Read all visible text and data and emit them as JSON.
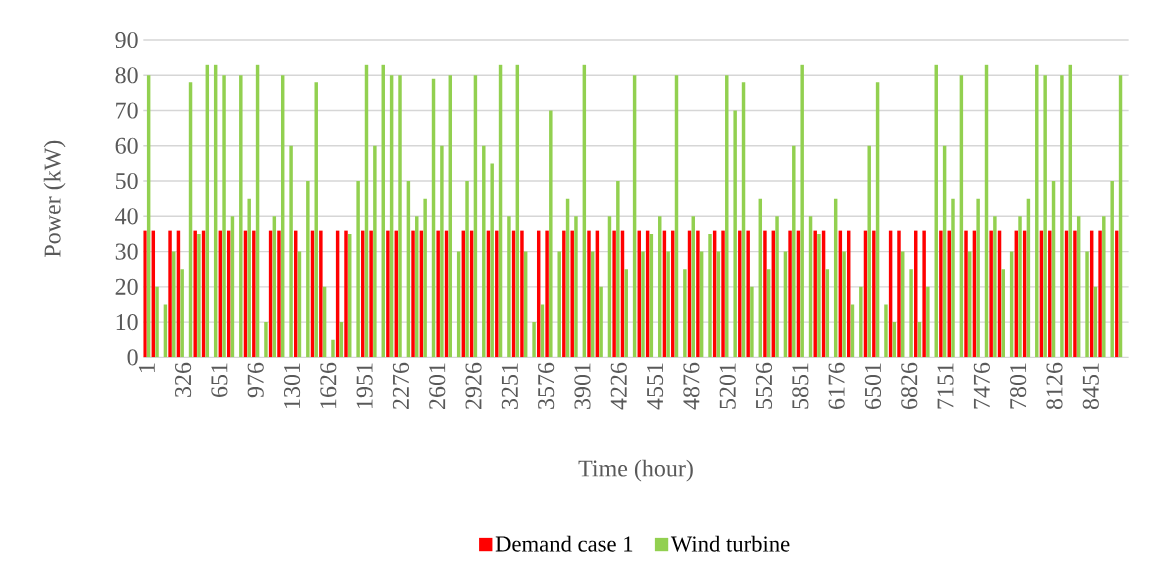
{
  "chart_data": {
    "type": "bar",
    "xlabel": "Time (hour)",
    "ylabel": "Power (kW)",
    "x": [
      1,
      76,
      151,
      226,
      301,
      376,
      451,
      526,
      601,
      676,
      751,
      826,
      901,
      976,
      1051,
      1126,
      1201,
      1276,
      1351,
      1426,
      1501,
      1576,
      1651,
      1726,
      1801,
      1876,
      1951,
      2026,
      2101,
      2176,
      2251,
      2326,
      2401,
      2476,
      2551,
      2626,
      2701,
      2776,
      2851,
      2926,
      3001,
      3076,
      3151,
      3226,
      3301,
      3376,
      3451,
      3526,
      3601,
      3676,
      3751,
      3826,
      3901,
      3976,
      4051,
      4126,
      4201,
      4276,
      4351,
      4426,
      4501,
      4576,
      4651,
      4726,
      4801,
      4876,
      4951,
      5026,
      5101,
      5176,
      5251,
      5326,
      5401,
      5476,
      5551,
      5626,
      5701,
      5776,
      5851,
      5926,
      6001,
      6076,
      6151,
      6226,
      6301,
      6376,
      6451,
      6526,
      6601,
      6676,
      6751,
      6826,
      6901,
      6976,
      7051,
      7126,
      7201,
      7276,
      7351,
      7426,
      7501,
      7576,
      7651,
      7726,
      7801,
      7876,
      7951,
      8026,
      8101,
      8176,
      8251,
      8326,
      8401,
      8476,
      8551,
      8626,
      8701
    ],
    "series": [
      {
        "name": "Demand case 1",
        "color": "#ff0000",
        "values": [
          36,
          36,
          0,
          36,
          36,
          0,
          36,
          36,
          0,
          36,
          36,
          0,
          36,
          36,
          0,
          36,
          36,
          0,
          36,
          0,
          36,
          36,
          0,
          36,
          36,
          0,
          36,
          36,
          0,
          36,
          36,
          0,
          36,
          36,
          0,
          36,
          36,
          0,
          36,
          36,
          0,
          36,
          36,
          0,
          36,
          36,
          0,
          36,
          36,
          0,
          36,
          36,
          0,
          36,
          36,
          0,
          36,
          36,
          0,
          36,
          36,
          0,
          36,
          36,
          0,
          36,
          36,
          0,
          36,
          36,
          0,
          36,
          36,
          0,
          36,
          36,
          0,
          36,
          36,
          0,
          36,
          36,
          0,
          36,
          36,
          0,
          36,
          36,
          0,
          36,
          36,
          0,
          36,
          36,
          0,
          36,
          36,
          0,
          36,
          36,
          0,
          36,
          36,
          0,
          36,
          36,
          0,
          36,
          36,
          0,
          36,
          36,
          0,
          36,
          36,
          0,
          36
        ]
      },
      {
        "name": "Wind turbine",
        "color": "#92d050",
        "values": [
          80,
          20,
          15,
          30,
          25,
          78,
          35,
          83,
          83,
          80,
          40,
          80,
          45,
          83,
          10,
          40,
          80,
          60,
          30,
          50,
          78,
          20,
          5,
          10,
          35,
          50,
          83,
          60,
          83,
          80,
          80,
          50,
          40,
          45,
          79,
          60,
          80,
          30,
          50,
          80,
          60,
          55,
          83,
          40,
          83,
          30,
          10,
          15,
          70,
          30,
          45,
          40,
          83,
          30,
          20,
          40,
          50,
          25,
          80,
          30,
          35,
          40,
          30,
          80,
          25,
          40,
          30,
          35,
          30,
          80,
          70,
          78,
          20,
          45,
          25,
          40,
          30,
          60,
          83,
          40,
          35,
          25,
          45,
          30,
          15,
          20,
          60,
          78,
          15,
          10,
          30,
          25,
          10,
          20,
          83,
          60,
          45,
          80,
          30,
          45,
          83,
          40,
          25,
          30,
          40,
          45,
          83,
          80,
          50,
          80,
          83,
          40,
          30,
          20,
          40,
          50,
          80
        ]
      }
    ],
    "xlim": [
      -30,
      8790
    ],
    "xticks": [
      1,
      326,
      651,
      976,
      1301,
      1626,
      1951,
      2276,
      2601,
      2926,
      3251,
      3576,
      3901,
      4226,
      4551,
      4876,
      5201,
      5526,
      5851,
      6176,
      6501,
      6826,
      7151,
      7476,
      7801,
      8126,
      8451
    ],
    "ylim": [
      0,
      90
    ],
    "yticks": [
      0,
      10,
      20,
      30,
      40,
      50,
      60,
      70,
      80,
      90
    ],
    "grid": "y",
    "legend": "bottom"
  }
}
